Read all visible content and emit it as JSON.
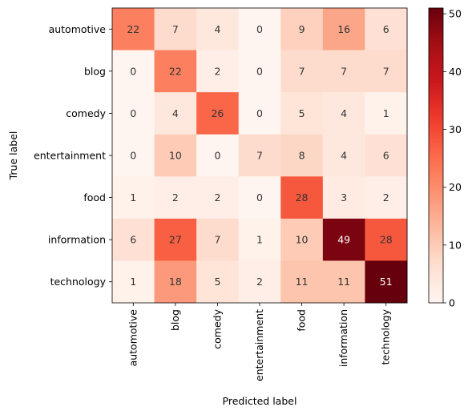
{
  "chart_data": {
    "type": "heatmap",
    "xlabel": "Predicted label",
    "ylabel": "True label",
    "x_categories": [
      "automotive",
      "blog",
      "comedy",
      "entertainment",
      "food",
      "information",
      "technology"
    ],
    "y_categories": [
      "automotive",
      "blog",
      "comedy",
      "entertainment",
      "food",
      "information",
      "technology"
    ],
    "values": [
      [
        22,
        7,
        4,
        0,
        9,
        16,
        6
      ],
      [
        0,
        22,
        2,
        0,
        7,
        7,
        7
      ],
      [
        0,
        4,
        26,
        0,
        5,
        4,
        1
      ],
      [
        0,
        10,
        0,
        7,
        8,
        4,
        6
      ],
      [
        1,
        2,
        2,
        0,
        28,
        3,
        2
      ],
      [
        6,
        27,
        7,
        1,
        10,
        49,
        28
      ],
      [
        1,
        18,
        5,
        2,
        11,
        11,
        51
      ]
    ],
    "colormap": "Reds",
    "colorbar": {
      "min": 0,
      "max": 51,
      "ticks": [
        0,
        10,
        20,
        30,
        40,
        50
      ]
    },
    "grid": false
  }
}
